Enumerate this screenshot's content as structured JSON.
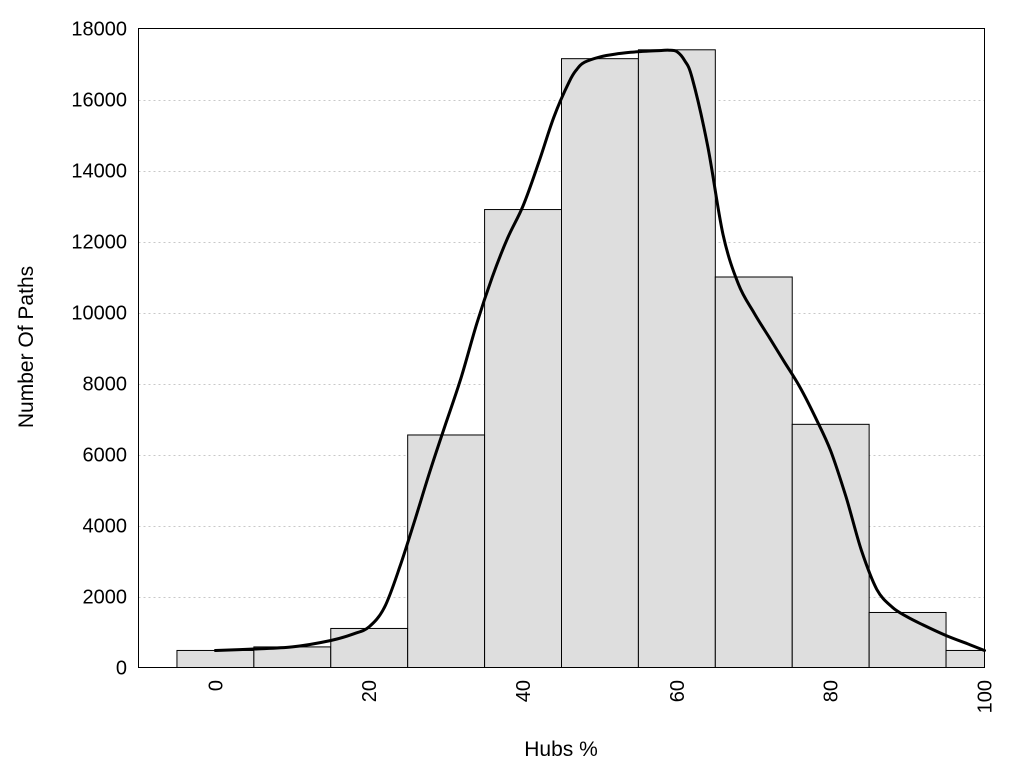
{
  "chart_data": {
    "type": "bar",
    "xlabel": "Hubs %",
    "ylabel": "Number Of Paths",
    "xlim": [
      -10,
      100
    ],
    "ylim": [
      0,
      18000
    ],
    "grid": true,
    "x_ticks": [
      "0",
      "20",
      "40",
      "60",
      "80",
      "100"
    ],
    "y_ticks": [
      "0",
      "2000",
      "4000",
      "6000",
      "8000",
      "10000",
      "12000",
      "14000",
      "16000",
      "18000"
    ],
    "bin_width": 10,
    "bins": {
      "x": [
        0,
        10,
        20,
        30,
        40,
        50,
        60,
        70,
        80,
        90,
        100
      ],
      "values": [
        480,
        580,
        1100,
        6550,
        12900,
        17150,
        17400,
        11000,
        6850,
        1550,
        480
      ]
    },
    "density_curve": {
      "x": [
        0,
        5,
        10,
        15,
        18,
        20,
        22,
        24,
        26,
        28,
        30,
        32,
        34,
        36,
        38,
        40,
        42,
        44,
        46,
        47,
        48,
        50,
        52,
        54,
        56,
        58,
        59,
        60,
        61,
        62,
        64,
        66,
        68,
        70,
        72,
        74,
        76,
        78,
        80,
        82,
        84,
        86,
        88,
        90,
        92,
        95,
        98,
        100
      ],
      "y": [
        480,
        520,
        580,
        760,
        950,
        1150,
        1700,
        2850,
        4200,
        5600,
        6900,
        8200,
        9700,
        11000,
        12100,
        13000,
        14200,
        15500,
        16500,
        16850,
        17050,
        17200,
        17280,
        17330,
        17360,
        17380,
        17390,
        17350,
        17100,
        16600,
        14700,
        12200,
        10800,
        10000,
        9300,
        8600,
        7900,
        7050,
        6100,
        4800,
        3300,
        2200,
        1700,
        1420,
        1200,
        900,
        650,
        480
      ]
    }
  }
}
